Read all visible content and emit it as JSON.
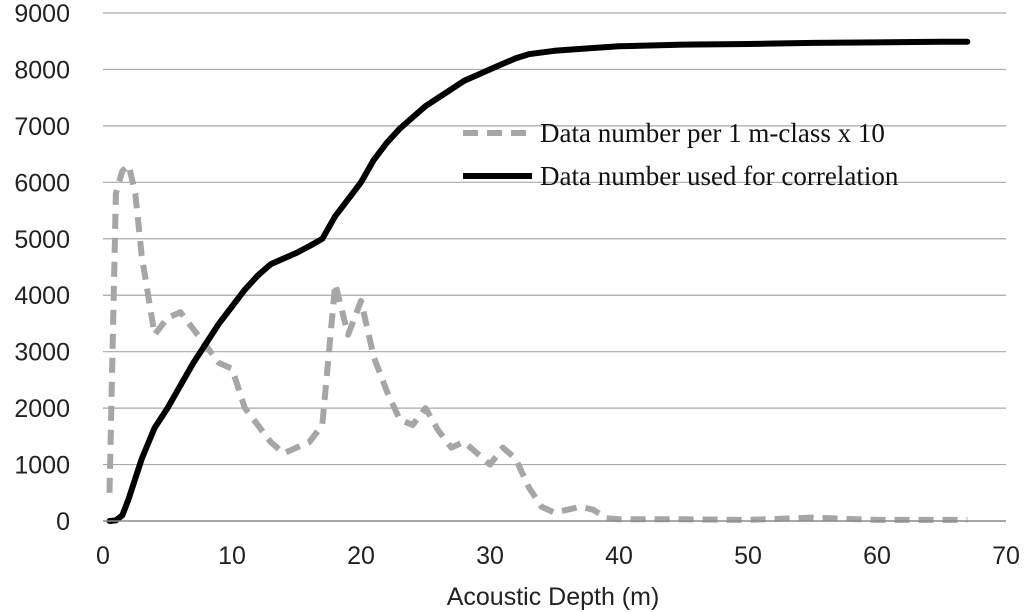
{
  "chart_data": {
    "type": "line",
    "title": "",
    "xlabel": "Acoustic Depth (m)",
    "ylabel": "",
    "xlim": [
      0,
      70
    ],
    "ylim": [
      0,
      9000
    ],
    "x_ticks": [
      0,
      10,
      20,
      30,
      40,
      50,
      60,
      70
    ],
    "y_ticks": [
      0,
      1000,
      2000,
      3000,
      4000,
      5000,
      6000,
      7000,
      8000,
      9000
    ],
    "grid": "horizontal",
    "legend_position": "right",
    "series": [
      {
        "name": "Data number per 1 m-class  x 10",
        "style": "dashed",
        "color": "#a6a6a6",
        "points": [
          [
            0.5,
            500
          ],
          [
            1,
            5800
          ],
          [
            1.5,
            6200
          ],
          [
            2,
            6300
          ],
          [
            2.5,
            5800
          ],
          [
            3,
            4700
          ],
          [
            4,
            3300
          ],
          [
            5,
            3600
          ],
          [
            6,
            3700
          ],
          [
            7,
            3400
          ],
          [
            8,
            3100
          ],
          [
            9,
            2800
          ],
          [
            10,
            2700
          ],
          [
            11,
            2000
          ],
          [
            12,
            1700
          ],
          [
            13,
            1400
          ],
          [
            14,
            1200
          ],
          [
            15,
            1300
          ],
          [
            16,
            1400
          ],
          [
            17,
            1700
          ],
          [
            18,
            4200
          ],
          [
            19,
            3300
          ],
          [
            20,
            3900
          ],
          [
            21,
            2900
          ],
          [
            22,
            2300
          ],
          [
            23,
            1800
          ],
          [
            24,
            1700
          ],
          [
            25,
            2000
          ],
          [
            26,
            1600
          ],
          [
            27,
            1300
          ],
          [
            28,
            1400
          ],
          [
            29,
            1200
          ],
          [
            30,
            1000
          ],
          [
            31,
            1300
          ],
          [
            32,
            1100
          ],
          [
            33,
            600
          ],
          [
            34,
            250
          ],
          [
            35,
            150
          ],
          [
            36,
            200
          ],
          [
            37,
            250
          ],
          [
            38,
            200
          ],
          [
            39,
            50
          ],
          [
            40,
            30
          ],
          [
            45,
            30
          ],
          [
            50,
            20
          ],
          [
            55,
            60
          ],
          [
            60,
            20
          ],
          [
            67,
            20
          ]
        ]
      },
      {
        "name": "Data number used for correlation",
        "style": "solid",
        "color": "#000000",
        "points": [
          [
            0.5,
            0
          ],
          [
            1,
            10
          ],
          [
            1.5,
            100
          ],
          [
            2,
            400
          ],
          [
            3,
            1100
          ],
          [
            4,
            1650
          ],
          [
            5,
            2000
          ],
          [
            6,
            2400
          ],
          [
            7,
            2800
          ],
          [
            8,
            3150
          ],
          [
            9,
            3500
          ],
          [
            10,
            3800
          ],
          [
            11,
            4100
          ],
          [
            12,
            4350
          ],
          [
            13,
            4550
          ],
          [
            14,
            4650
          ],
          [
            15,
            4750
          ],
          [
            16,
            4870
          ],
          [
            17,
            5000
          ],
          [
            18,
            5400
          ],
          [
            19,
            5700
          ],
          [
            20,
            6000
          ],
          [
            21,
            6400
          ],
          [
            22,
            6700
          ],
          [
            23,
            6950
          ],
          [
            24,
            7150
          ],
          [
            25,
            7350
          ],
          [
            26,
            7500
          ],
          [
            27,
            7650
          ],
          [
            28,
            7800
          ],
          [
            29,
            7900
          ],
          [
            30,
            8000
          ],
          [
            31,
            8100
          ],
          [
            32,
            8200
          ],
          [
            33,
            8270
          ],
          [
            35,
            8330
          ],
          [
            38,
            8380
          ],
          [
            40,
            8410
          ],
          [
            45,
            8440
          ],
          [
            50,
            8450
          ],
          [
            55,
            8470
          ],
          [
            60,
            8480
          ],
          [
            65,
            8490
          ],
          [
            67,
            8490
          ]
        ]
      }
    ]
  }
}
